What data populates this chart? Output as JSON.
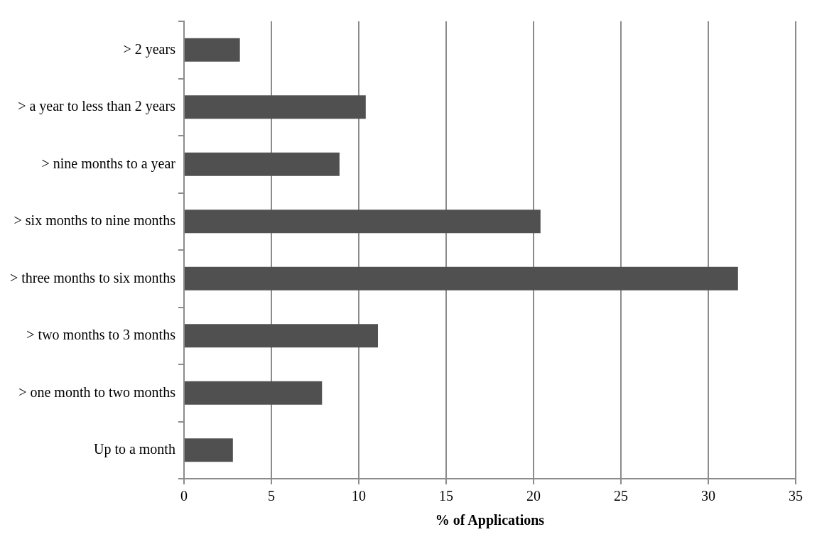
{
  "chart_data": {
    "type": "bar",
    "orientation": "horizontal",
    "xlabel": "% of Applications",
    "categories": [
      "> 2 years",
      "> a year to less than 2 years",
      "> nine months to a year",
      "> six months to nine months",
      "> three months to six months",
      "> two months to 3 months",
      "> one month to two months",
      "Up to a month"
    ],
    "values": [
      3.2,
      10.4,
      8.9,
      20.4,
      31.7,
      11.1,
      7.9,
      2.8
    ],
    "color": "#505050",
    "xlim": [
      0,
      35
    ],
    "xticks": [
      0,
      5,
      10,
      15,
      20,
      25,
      30,
      35
    ],
    "grid": "x",
    "legend": false
  }
}
